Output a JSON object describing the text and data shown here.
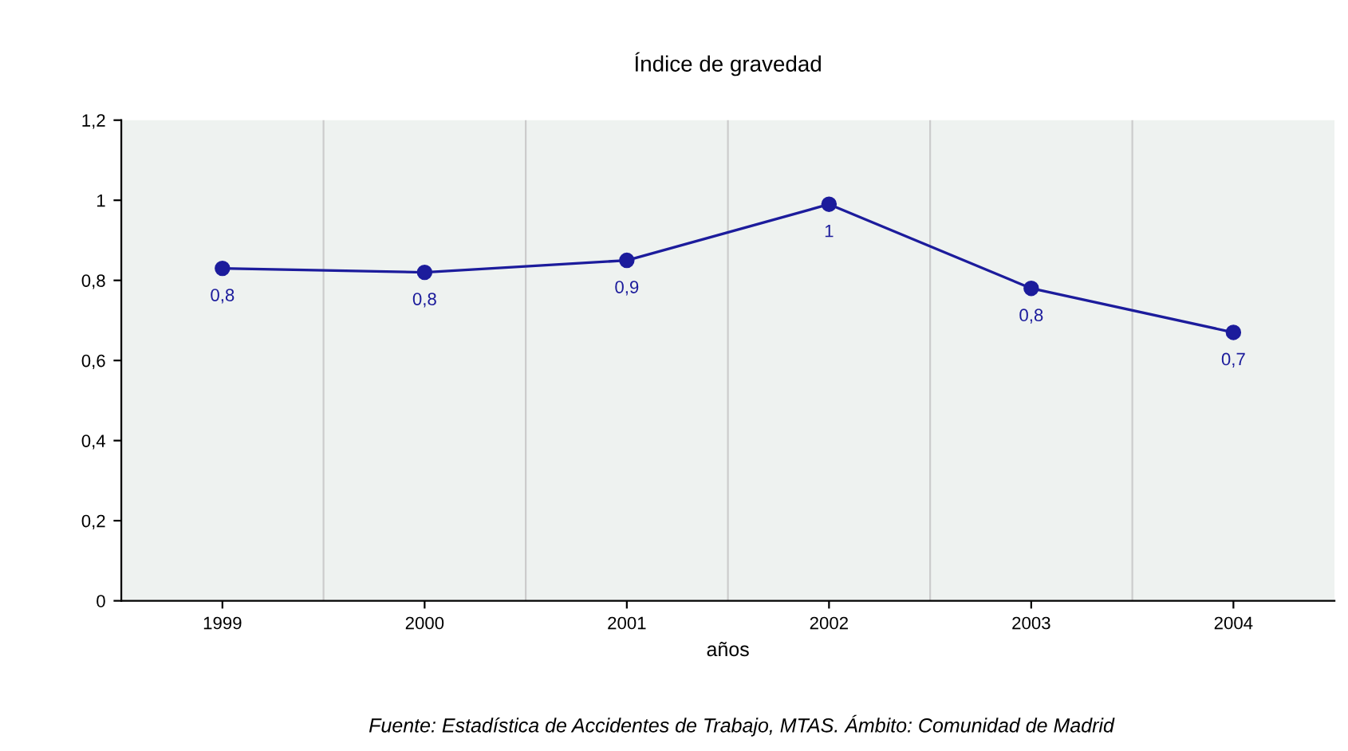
{
  "chart_data": {
    "type": "line",
    "title": "Índice de gravedad",
    "xlabel": "años",
    "categories": [
      "1999",
      "2000",
      "2001",
      "2002",
      "2003",
      "2004"
    ],
    "series": [
      {
        "color": "#1c1c9c",
        "values": [
          0.83,
          0.82,
          0.85,
          0.99,
          0.78,
          0.67
        ],
        "value_labels": [
          "0,8",
          "0,8",
          "0,9",
          "1",
          "0,8",
          "0,7"
        ]
      }
    ],
    "ylim": [
      0,
      1.2
    ],
    "yticks": [
      {
        "value": 0,
        "label": "0"
      },
      {
        "value": 0.2,
        "label": "0,2"
      },
      {
        "value": 0.4,
        "label": "0,4"
      },
      {
        "value": 0.6,
        "label": "0,6"
      },
      {
        "value": 0.8,
        "label": "0,8"
      },
      {
        "value": 1,
        "label": "1"
      },
      {
        "value": 1.2,
        "label": "1,2"
      }
    ],
    "grid": "x",
    "marker": "circle",
    "line_style": "solid",
    "annotations": [
      "Fuente: Estadística de Accidentes de Trabajo, MTAS. Ámbito: Comunidad de Madrid"
    ]
  }
}
